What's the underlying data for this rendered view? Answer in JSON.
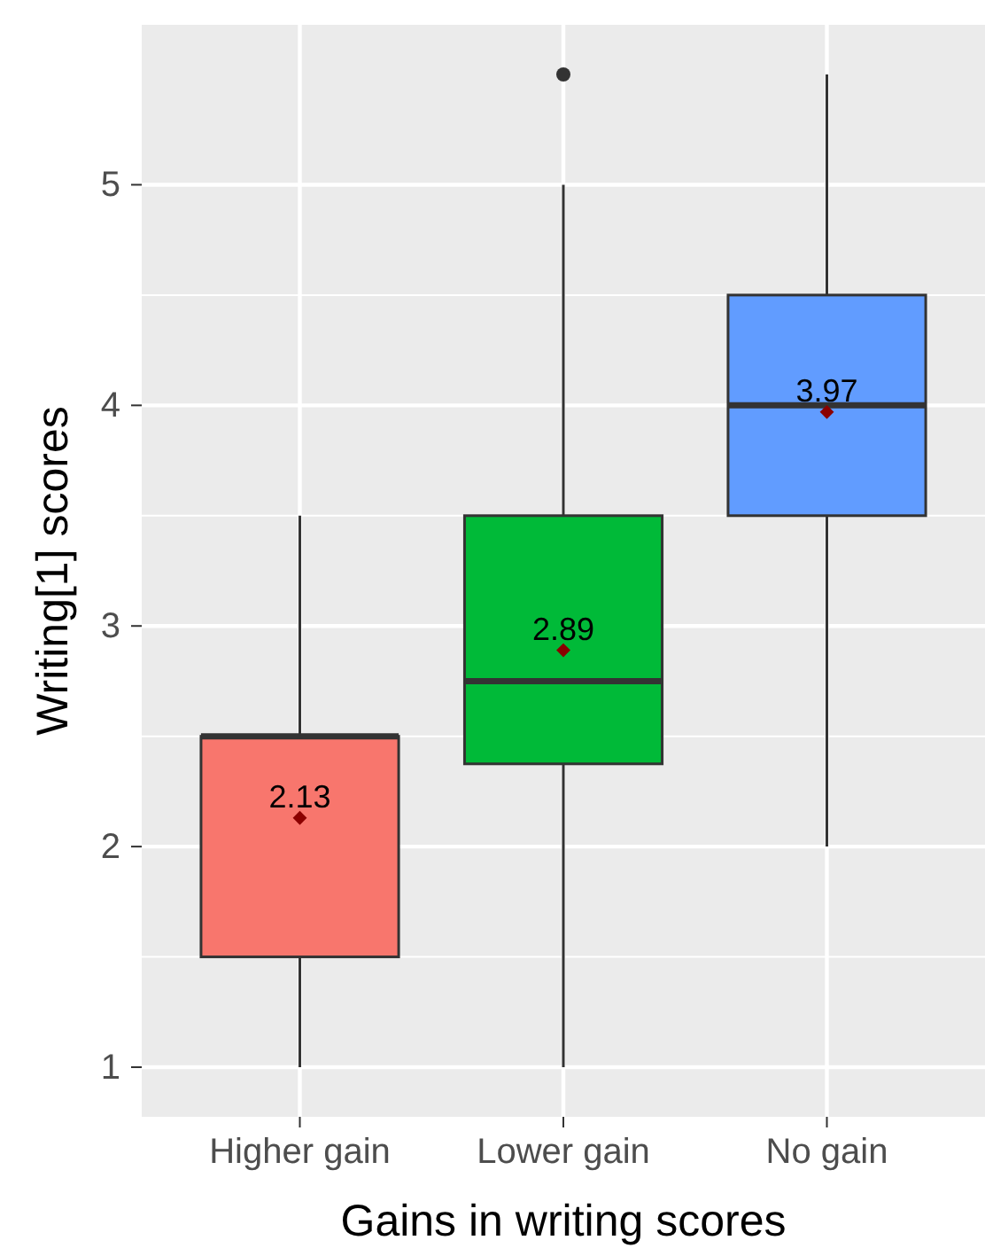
{
  "chart_data": {
    "type": "box",
    "xlabel": "Gains in writing scores",
    "ylabel": "Writing[1] scores",
    "categories": [
      "Higher gain",
      "Lower gain",
      "No gain"
    ],
    "colors": [
      "#f8766d",
      "#00ba38",
      "#619cff"
    ],
    "boxes": [
      {
        "low": 1,
        "q1": 1.5,
        "median": 2.5,
        "q3": 2.5,
        "high": 3.5,
        "mean": 2.13
      },
      {
        "low": 1,
        "q1": 2.375,
        "median": 2.75,
        "q3": 3.5,
        "high": 5,
        "mean": 2.89,
        "outliers": [
          5.5
        ]
      },
      {
        "low": 2,
        "q1": 3.5,
        "median": 4,
        "q3": 4.5,
        "high": 5.5,
        "mean": 3.97
      }
    ],
    "annotations": [
      "2.13",
      "2.89",
      "3.97"
    ],
    "ylim": [
      0.775,
      5.725
    ],
    "yticks": [
      1,
      2,
      3,
      4,
      5
    ],
    "grid": true
  }
}
